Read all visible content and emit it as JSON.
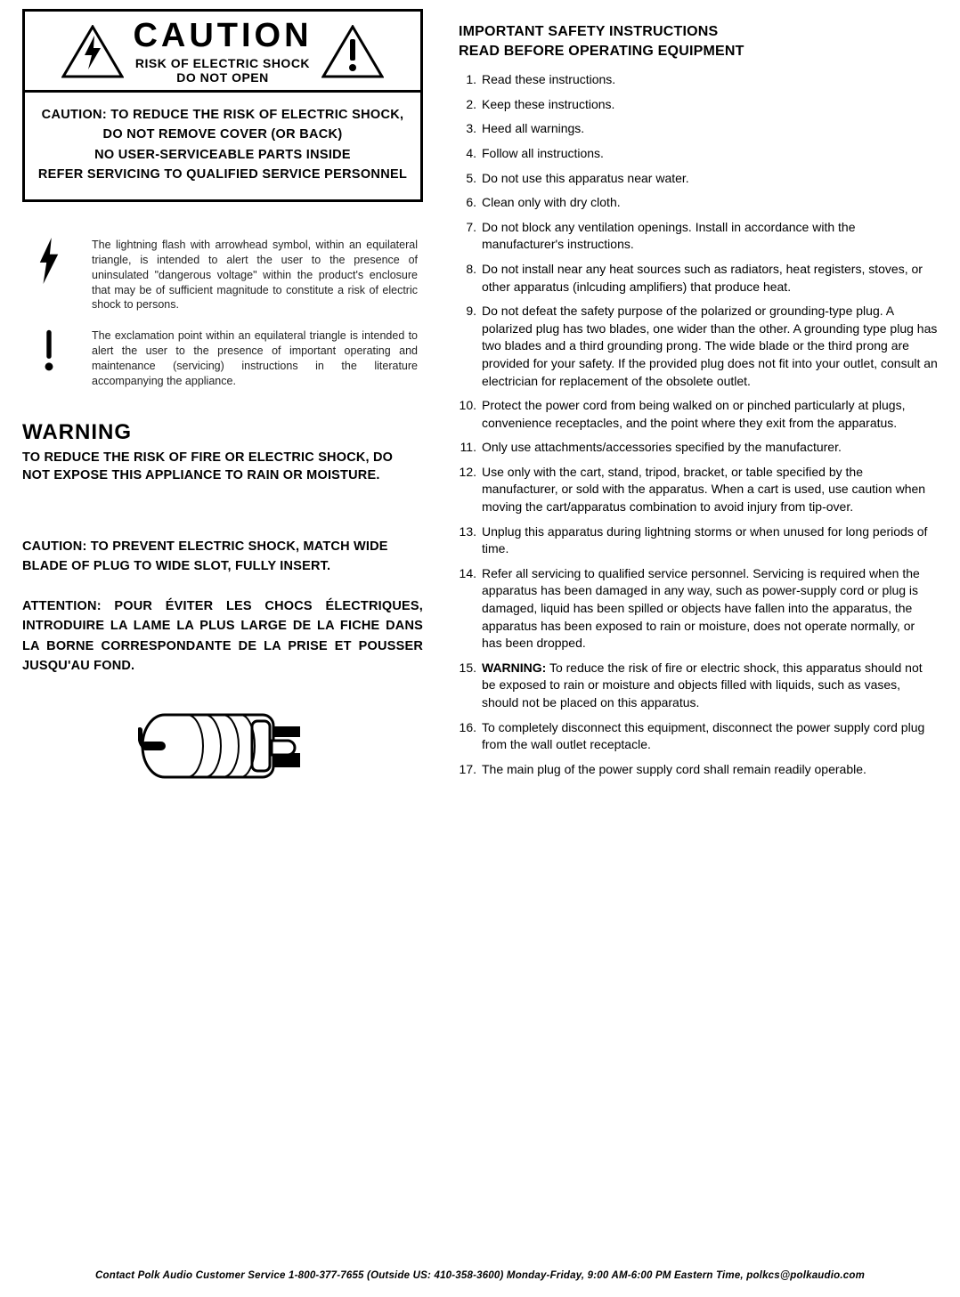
{
  "left": {
    "caution_word": "CAUTION",
    "caution_sub1": "RISK OF ELECTRIC SHOCK",
    "caution_sub2": "DO NOT OPEN",
    "caution_body_l1": "CAUTION: TO REDUCE THE RISK OF ELECTRIC SHOCK,",
    "caution_body_l2": "DO NOT REMOVE COVER (OR BACK)",
    "caution_body_l3": "NO USER-SERVICEABLE PARTS INSIDE",
    "caution_body_l4": "REFER SERVICING TO QUALIFIED SERVICE PERSONNEL",
    "sym_bolt": "The lightning flash with arrowhead symbol, within an equilateral triangle, is intended to alert the user to the presence of uninsulated \"dangerous voltage\" within the product's enclosure that may be of sufficient magnitude to constitute a risk of electric shock to persons.",
    "sym_excl": "The exclamation point within an equilateral triangle is intended to alert the user to the presence of important operating and maintenance (servicing) instructions in the literature accompanying the appliance.",
    "warning_title": "WARNING",
    "warning_text": "TO REDUCE THE RISK OF FIRE OR ELECTRIC SHOCK, DO NOT EXPOSE THIS APPLIANCE TO RAIN OR MOISTURE.",
    "caution_plug_lead": "CAUTION:",
    "caution_plug_text": " TO PREVENT ELECTRIC SHOCK, MATCH WIDE BLADE OF PLUG TO WIDE SLOT, FULLY INSERT.",
    "attention_plug_lead": "ATTENTION:",
    "attention_plug_text": " POUR ÉVITER LES CHOCS ÉLECTRIQUES, INTRODUIRE LA LAME LA PLUS LARGE DE LA FICHE DANS LA BORNE CORRESPONDANTE DE LA PRISE ET POUSSER JUSQU'AU FOND."
  },
  "right": {
    "heading_l1": "IMPORTANT SAFETY INSTRUCTIONS",
    "heading_l2": "READ BEFORE OPERATING EQUIPMENT",
    "items": [
      {
        "n": "1.",
        "t": "Read these instructions."
      },
      {
        "n": "2.",
        "t": "Keep these instructions."
      },
      {
        "n": "3.",
        "t": "Heed all warnings."
      },
      {
        "n": "4.",
        "t": "Follow all instructions."
      },
      {
        "n": "5.",
        "t": "Do not use this apparatus near water."
      },
      {
        "n": "6.",
        "t": "Clean only with dry cloth."
      },
      {
        "n": "7.",
        "t": "Do not block any ventilation openings. Install in accordance with the manufacturer's instructions."
      },
      {
        "n": "8.",
        "t": "Do not install near any heat sources such as radiators, heat registers, stoves, or other apparatus (inlcuding amplifiers) that produce heat."
      },
      {
        "n": "9.",
        "t": "Do not defeat the safety purpose of the polarized or grounding-type plug. A polarized plug has two blades, one wider than the other. A grounding type plug has two blades and a third grounding prong. The wide blade or the third prong are provided for your safety. If the provided plug does not fit into your outlet, consult an electrician for replacement of the obsolete outlet."
      },
      {
        "n": "10.",
        "t": "Protect the power cord from being walked on or pinched particularly at plugs, convenience receptacles, and the point where they exit from the apparatus."
      },
      {
        "n": "11.",
        "t": "Only use attachments/accessories specified by the manufacturer."
      },
      {
        "n": "12.",
        "t": "Use only with the cart, stand, tripod, bracket, or table specified by the manufacturer, or sold with the apparatus. When a cart is used, use caution when moving the cart/apparatus combination to avoid injury from tip-over."
      },
      {
        "n": "13.",
        "t": "Unplug this apparatus during lightning storms or when unused for long periods of time."
      },
      {
        "n": "14.",
        "t": "Refer all servicing to qualified service personnel. Servicing is required when the apparatus has been damaged in any way, such as power-supply cord or plug is damaged, liquid has been spilled or objects have fallen into the apparatus, the apparatus has been exposed to rain or moisture, does not operate normally, or has been dropped."
      },
      {
        "n": "15.",
        "bold_lead": "WARNING:",
        "t": " To reduce the risk of fire or electric shock, this apparatus should not be exposed to rain or moisture and objects filled with liquids, such as vases, should not be placed on this apparatus."
      },
      {
        "n": "16.",
        "t": "To completely disconnect this equipment, disconnect the power supply cord plug from the wall outlet receptacle."
      },
      {
        "n": "17.",
        "t": "The main plug of the power supply cord shall remain readily operable."
      }
    ]
  },
  "footer": "Contact Polk Audio Customer Service 1-800-377-7655 (Outside US: 410-358-3600) Monday-Friday, 9:00 AM-6:00 PM Eastern Time, polkcs@polkaudio.com",
  "style": {
    "page_bg": "#ffffff",
    "text_color": "#000000",
    "body_font_size_pt": 10.5,
    "heading_font_size_pt": 12,
    "caution_word_font_size_pt": 28
  }
}
